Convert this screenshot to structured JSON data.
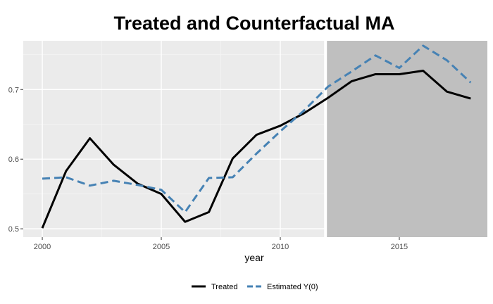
{
  "chart_data": {
    "type": "line",
    "title": "Treated and Counterfactual MA",
    "xlabel": "year",
    "ylabel": "",
    "xlim": [
      1999.2,
      2018.7
    ],
    "ylim": [
      0.488,
      0.77
    ],
    "x_ticks": [
      2000,
      2005,
      2010,
      2015
    ],
    "y_ticks": [
      0.5,
      0.6,
      0.7
    ],
    "y_tick_labels": [
      "0.5",
      "0.6",
      "0.7"
    ],
    "grid": true,
    "legend_position": "bottom",
    "shaded_region": {
      "x_start": 2011.9,
      "x_end": 2018.7,
      "color": "#bfbfbf"
    },
    "treatment_line_x": 2011.9,
    "x": [
      2000,
      2001,
      2002,
      2003,
      2004,
      2005,
      2006,
      2007,
      2008,
      2009,
      2010,
      2011,
      2012,
      2013,
      2014,
      2015,
      2016,
      2017,
      2018
    ],
    "series": [
      {
        "name": "Treated",
        "color": "#000000",
        "dash": "solid",
        "values": [
          0.501,
          0.583,
          0.63,
          0.592,
          0.565,
          0.55,
          0.51,
          0.524,
          0.601,
          0.635,
          0.648,
          0.666,
          0.688,
          0.712,
          0.722,
          0.722,
          0.727,
          0.697,
          0.687
        ]
      },
      {
        "name": "Estimated Y(0)",
        "color": "#4682b4",
        "dash": "dashed",
        "values": [
          0.572,
          0.574,
          0.562,
          0.569,
          0.563,
          0.556,
          0.524,
          0.573,
          0.574,
          0.608,
          0.64,
          0.67,
          0.704,
          0.726,
          0.749,
          0.731,
          0.763,
          0.742,
          0.71
        ]
      }
    ]
  },
  "colors": {
    "panel_background": "#ebebeb",
    "grid_major": "#ffffff",
    "shaded": "#bfbfbf",
    "treated": "#000000",
    "estimated": "#4682b4"
  }
}
